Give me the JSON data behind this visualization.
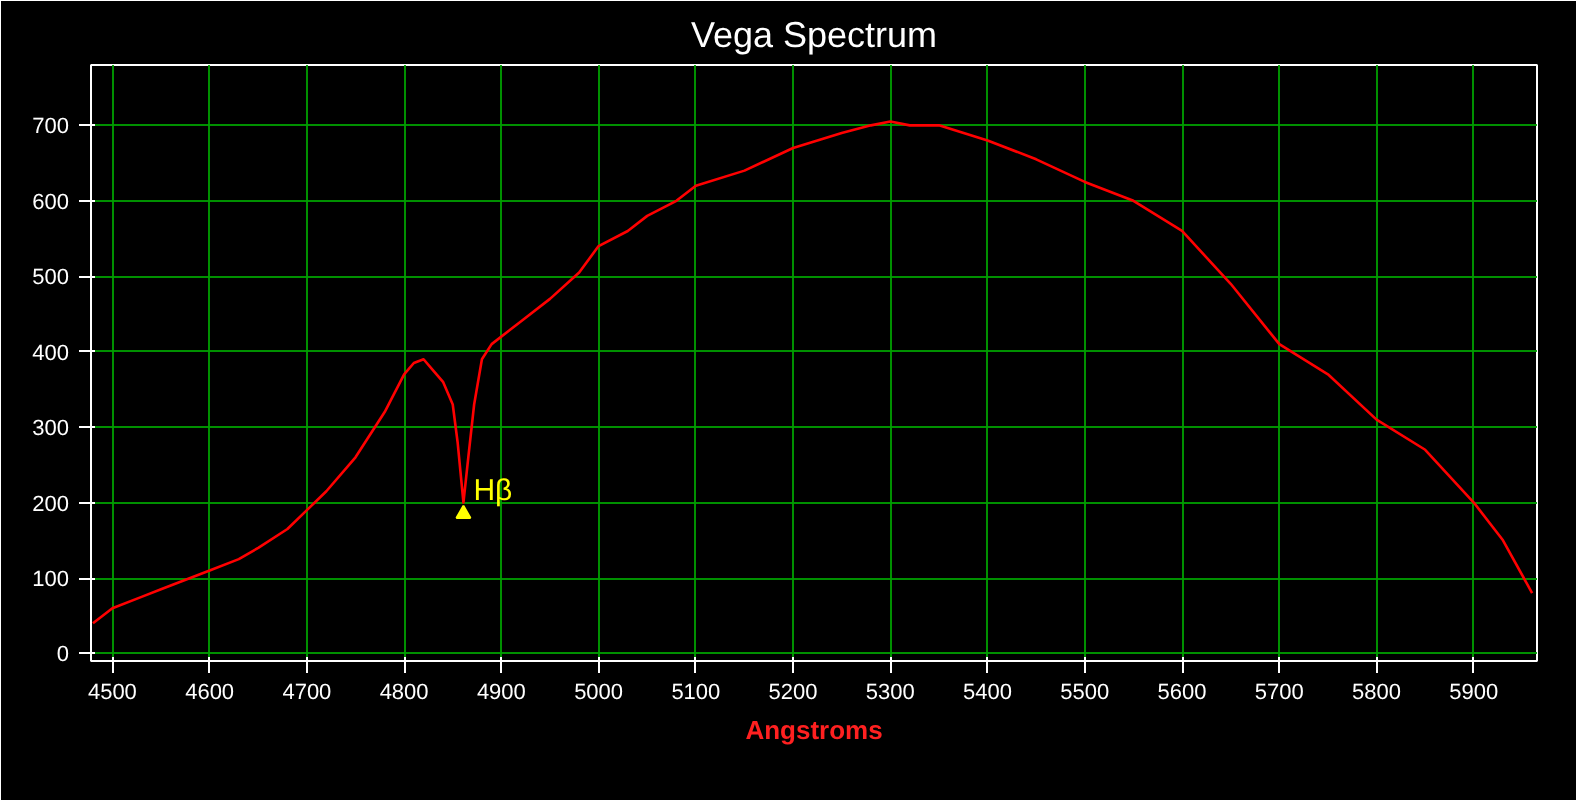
{
  "chart_data": {
    "type": "line",
    "title": "Vega Spectrum",
    "xlabel": "Angstroms",
    "x": [
      4480,
      4500,
      4530,
      4550,
      4580,
      4600,
      4630,
      4650,
      4680,
      4700,
      4720,
      4750,
      4780,
      4800,
      4810,
      4820,
      4830,
      4840,
      4850,
      4855,
      4861,
      4866,
      4872,
      4880,
      4890,
      4920,
      4950,
      4980,
      5000,
      5030,
      5050,
      5080,
      5100,
      5150,
      5200,
      5250,
      5280,
      5300,
      5320,
      5350,
      5400,
      5450,
      5500,
      5550,
      5600,
      5650,
      5700,
      5750,
      5800,
      5850,
      5900,
      5930,
      5960
    ],
    "series": [
      {
        "color": "#ff0000",
        "values": [
          40,
          60,
          75,
          85,
          100,
          110,
          125,
          140,
          165,
          190,
          215,
          260,
          320,
          370,
          385,
          390,
          375,
          360,
          330,
          280,
          200,
          260,
          330,
          390,
          410,
          440,
          470,
          505,
          540,
          560,
          580,
          600,
          620,
          640,
          670,
          690,
          700,
          705,
          700,
          700,
          680,
          655,
          625,
          600,
          560,
          490,
          410,
          370,
          310,
          270,
          200,
          150,
          80
        ]
      }
    ],
    "xlim": [
      4478,
      5965
    ],
    "ylim": [
      -10,
      780
    ],
    "xticks": [
      4500,
      4600,
      4700,
      4800,
      4900,
      5000,
      5100,
      5200,
      5300,
      5400,
      5500,
      5600,
      5700,
      5800,
      5900
    ],
    "yticks": [
      0,
      100,
      200,
      300,
      400,
      500,
      600,
      700
    ],
    "annotations": [
      {
        "text": "Hβ",
        "x": 4861,
        "y": 185
      }
    ],
    "grid": true,
    "marker": "none",
    "line_style": "solid"
  }
}
